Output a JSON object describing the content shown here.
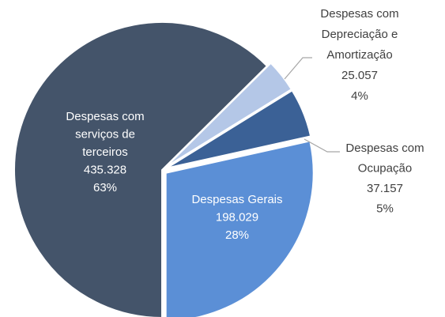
{
  "chart_data": {
    "type": "pie",
    "categories": [
      "Despesas com serviços de terceiros",
      "Despesas com Depreciação e Amortização",
      "Despesas com Ocupação",
      "Despesas Gerais"
    ],
    "values": [
      435328,
      25057,
      37157,
      198029
    ],
    "value_labels": [
      "435.328",
      "25.057",
      "37.157",
      "198.029"
    ],
    "percents": [
      63,
      4,
      5,
      28
    ],
    "percent_labels": [
      "63%",
      "4%",
      "5%",
      "28%"
    ],
    "colors": [
      "#44546a",
      "#b4c7e7",
      "#3b6196",
      "#5b8fd6"
    ]
  }
}
